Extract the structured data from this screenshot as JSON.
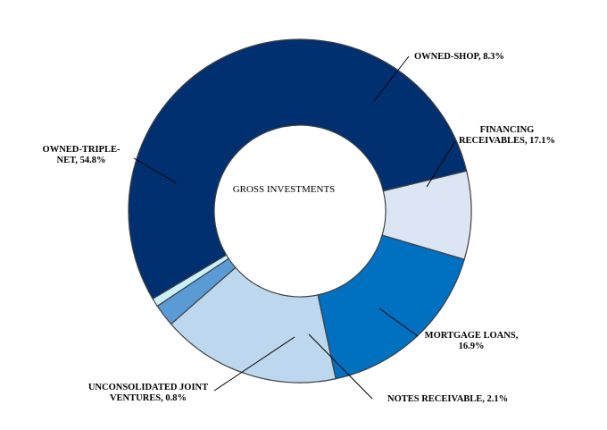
{
  "chart_data": {
    "type": "pie",
    "variant": "donut",
    "center_label": "GROSS INVESTMENTS",
    "legend": "none",
    "slices": [
      {
        "label_lines": [
          "OWNED-SHOP, 8.3%"
        ],
        "value": 8.3,
        "color": "#DCE5F4"
      },
      {
        "label_lines": [
          "FINANCING",
          "RECEIVABLES, 17.1%"
        ],
        "value": 17.1,
        "color": "#0070C0"
      },
      {
        "label_lines": [
          "MORTGAGE LOANS,",
          "16.9%"
        ],
        "value": 16.9,
        "color": "#BDD7EE"
      },
      {
        "label_lines": [
          "NOTES RECEIVABLE, 2.1%"
        ],
        "value": 2.1,
        "color": "#5B9BD5"
      },
      {
        "label_lines": [
          "UNCONSOLIDATED JOINT",
          "VENTURES, 0.8%"
        ],
        "value": 0.8,
        "color": "#C9F1FB"
      },
      {
        "label_lines": [
          "OWNED-TRIPLE-",
          "NET, 54.8%"
        ],
        "value": 54.8,
        "color": "#003070"
      }
    ]
  }
}
